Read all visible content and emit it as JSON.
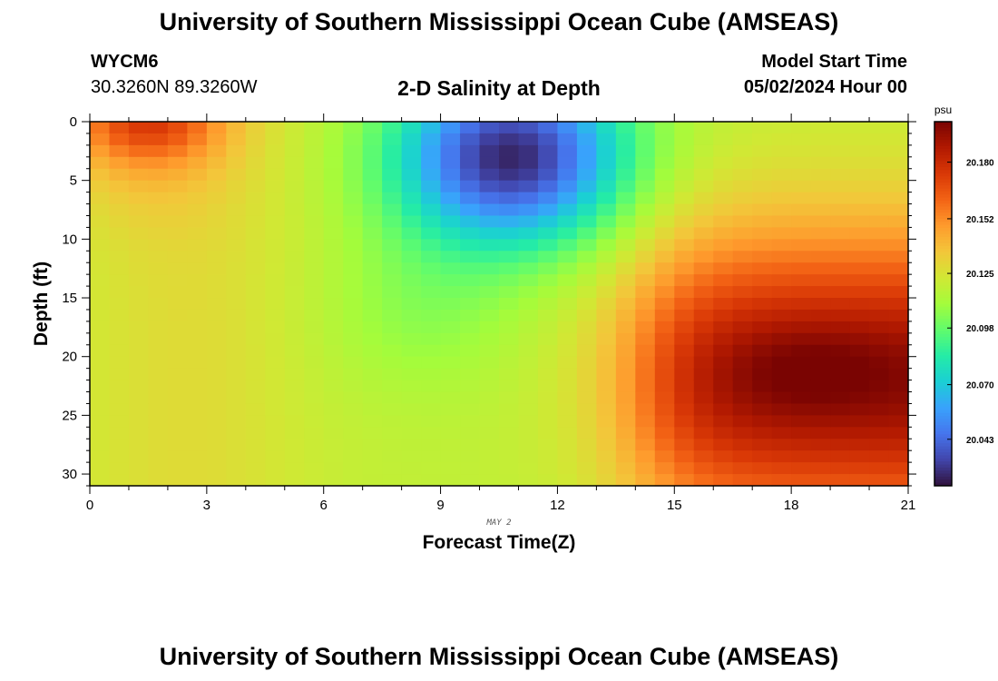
{
  "header": {
    "title": "University of Southern Mississippi Ocean Cube (AMSEAS)",
    "station_id": "WYCM6",
    "coordinates": "30.3260N  89.3260W",
    "subtitle": "2-D Salinity at Depth",
    "model_start_label": "Model Start Time",
    "model_start_value": "05/02/2024 Hour 00"
  },
  "footer": {
    "title": "University of Southern Mississippi Ocean Cube (AMSEAS)"
  },
  "chart_data": {
    "type": "heatmap",
    "title": "2-D Salinity at Depth",
    "xlabel": "Forecast Time(Z)",
    "ylabel": "Depth (ft)",
    "date_label": "MAY 2",
    "x_ticks": [
      0,
      3,
      6,
      9,
      12,
      15,
      18,
      21
    ],
    "y_ticks": [
      0,
      5,
      10,
      15,
      20,
      25,
      30
    ],
    "xlim": [
      0,
      21
    ],
    "ylim": [
      0,
      31
    ],
    "colorbar": {
      "unit": "psu",
      "ticks": [
        "20.180",
        "20.152",
        "20.125",
        "20.098",
        "20.070",
        "20.043"
      ],
      "range": [
        20.02,
        20.2
      ]
    },
    "field_description": {
      "feature_low": {
        "time": 10.8,
        "depth": 3,
        "value": 20.025
      },
      "feature_high_surface": {
        "time": 1.5,
        "depth": 0,
        "value": 20.165
      },
      "feature_high_deep": {
        "time": 18.5,
        "depth": 21,
        "value": 20.195
      }
    },
    "colors": {
      "scale": [
        "#30123b",
        "#4145ab",
        "#4675ed",
        "#39a2fc",
        "#1bcfd4",
        "#24eca6",
        "#61fc6c",
        "#a4fc3b",
        "#d1e834",
        "#f3c63a",
        "#fe9b2d",
        "#f36315",
        "#d93806",
        "#b11901",
        "#7a0402"
      ]
    }
  }
}
